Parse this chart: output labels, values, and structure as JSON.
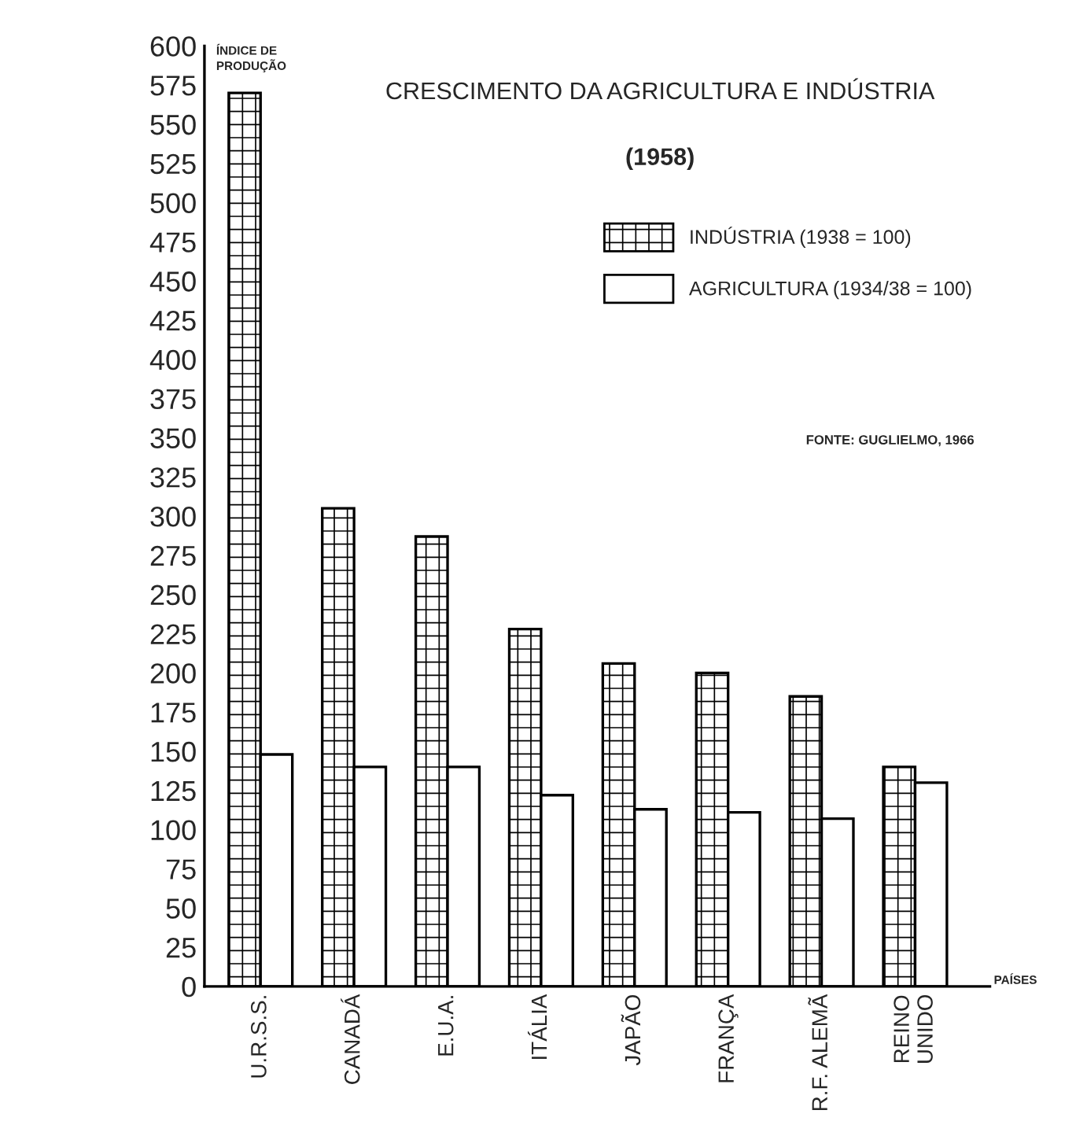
{
  "chart_data": {
    "type": "bar",
    "title": "CRESCIMENTO DA AGRICULTURA E INDÚSTRIA",
    "subtitle": "(1958)",
    "ylabel": "ÍNDICE DE\nPRODUÇÃO",
    "xlabel": "PAÍSES",
    "categories": [
      "U.R.S.S.",
      "CANADÁ",
      "E.U.A.",
      "ITÁLIA",
      "JAPÃO",
      "FRANÇA",
      "R.F. ALEMÃ",
      "REINO\nUNIDO"
    ],
    "series": [
      {
        "name": "INDÚSTRIA (1938 = 100)",
        "color": "#000000",
        "values": [
          570,
          305,
          287,
          228,
          206,
          200,
          185,
          140
        ]
      },
      {
        "name": "AGRICULTURA (1934/38 = 100)",
        "color": "#ffffff",
        "values": [
          148,
          140,
          140,
          122,
          113,
          111,
          107,
          130
        ]
      }
    ],
    "ylim": [
      0,
      600
    ],
    "yticks": [
      0,
      25,
      50,
      75,
      100,
      125,
      150,
      175,
      200,
      225,
      250,
      275,
      300,
      325,
      350,
      375,
      400,
      425,
      450,
      475,
      500,
      525,
      550,
      575,
      600
    ],
    "grid": false,
    "legend": "top right",
    "annotations": [
      "FONTE: GUGLIELMO, 1966"
    ]
  }
}
